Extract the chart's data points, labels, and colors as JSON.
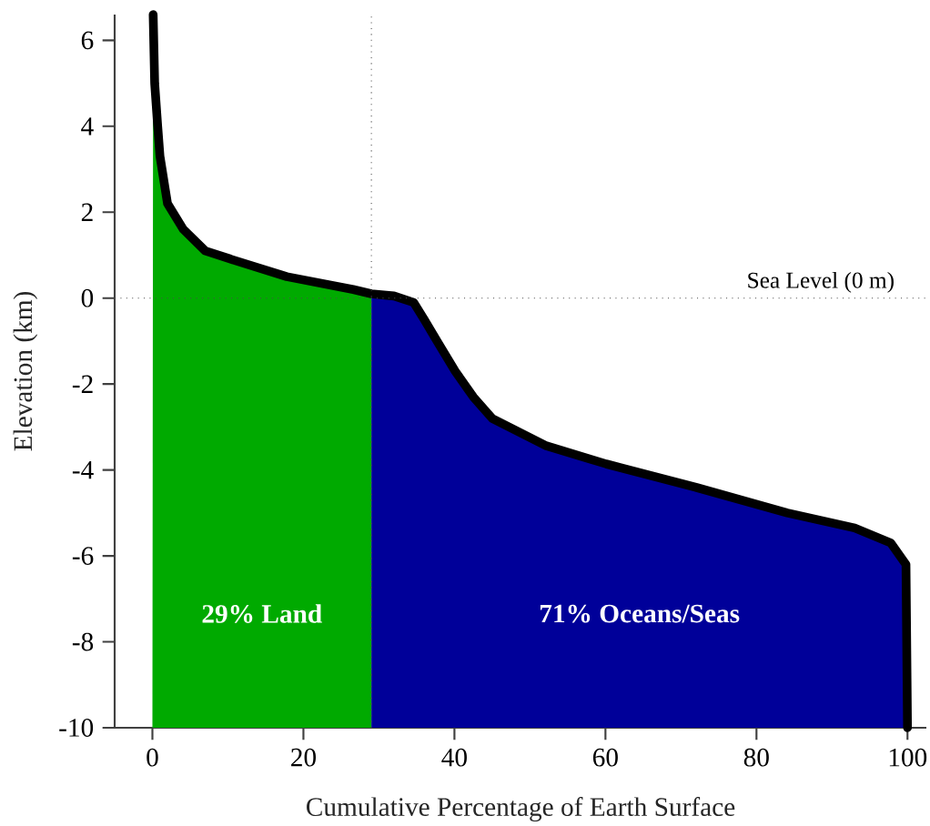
{
  "chart_data": {
    "type": "area",
    "xlabel": "Cumulative Percentage of Earth Surface",
    "ylabel": "Elevation (km)",
    "xlim": [
      -5,
      102.5
    ],
    "ylim": [
      -10,
      6.6
    ],
    "xticks": [
      0,
      20,
      40,
      60,
      80,
      100
    ],
    "yticks": [
      -10,
      -8,
      -6,
      -4,
      -2,
      0,
      2,
      4,
      6
    ],
    "grid": false,
    "series": [
      {
        "color": "#00aa00",
        "x": [
          0,
          0.1,
          0.3,
          0.7,
          1.0,
          2,
          4.1,
          7,
          10.5,
          17.8,
          26.6,
          29,
          29
        ],
        "values": [
          -10,
          6.6,
          5,
          4,
          3.3,
          2.2,
          1.6,
          1.1,
          0.9,
          0.5,
          0.2,
          0.1,
          -10
        ]
      },
      {
        "color": "#000099",
        "x": [
          29,
          29,
          32,
          34.6,
          36,
          37.7,
          40.1,
          42.5,
          45,
          52.2,
          60.1,
          72.1,
          84.1,
          93,
          97.8,
          99.8,
          100
        ],
        "values": [
          -10,
          0.1,
          0.05,
          -0.1,
          -0.5,
          -1.0,
          -1.7,
          -2.3,
          -2.8,
          -3.44,
          -3.86,
          -4.41,
          -5.0,
          -5.35,
          -5.7,
          -6.2,
          -10
        ]
      },
      {
        "type": "line",
        "color": "#000000",
        "x": [
          0.1,
          0.3,
          0.7,
          1.0,
          2,
          4.1,
          7,
          10.5,
          17.8,
          26.6,
          29,
          32,
          34.6,
          36,
          37.7,
          40.1,
          42.5,
          45,
          52.2,
          60.1,
          72.1,
          84.1,
          93,
          97.8,
          99.8,
          100
        ],
        "values": [
          6.6,
          5,
          4,
          3.3,
          2.2,
          1.6,
          1.1,
          0.9,
          0.5,
          0.2,
          0.1,
          0.05,
          -0.1,
          -0.5,
          -1.0,
          -1.7,
          -2.3,
          -2.8,
          -3.44,
          -3.86,
          -4.41,
          -5.0,
          -5.35,
          -5.7,
          -6.2,
          -10
        ]
      }
    ],
    "ref_lines": [
      {
        "axis": "x",
        "value": 29,
        "line_style": "dotted"
      },
      {
        "axis": "y",
        "value": 0,
        "label": "Sea Level (0 m)",
        "line_style": "dotted"
      }
    ],
    "annotations": [
      "29% Land",
      "71%  Oceans/Seas"
    ]
  }
}
